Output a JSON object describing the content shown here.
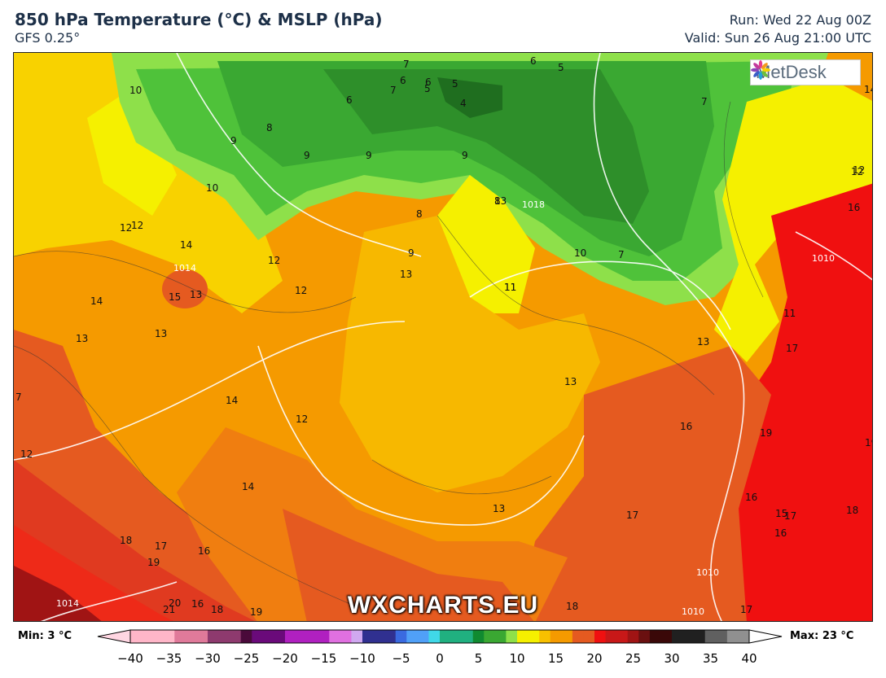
{
  "header": {
    "title": "850 hPa Temperature (°C) & MSLP (hPa)",
    "model": "GFS 0.25°",
    "run": "Run: Wed 22 Aug 00Z",
    "valid": "Valid: Sun 26 Aug 21:00 UTC"
  },
  "logo": {
    "text": "MetDesk",
    "icon": "metdesk-flower-icon"
  },
  "watermark": "WXCHARTS.EU",
  "colorbar": {
    "min_label": "Min: 3 °C",
    "max_label": "Max: 23 °C",
    "ticks": [
      "−40",
      "−35",
      "−30",
      "−25",
      "−20",
      "−15",
      "−10",
      "−5",
      "0",
      "5",
      "10",
      "15",
      "20",
      "25",
      "30",
      "35",
      "40"
    ],
    "range": [
      -40,
      40
    ]
  },
  "map_labels": {
    "temperature": [
      "7",
      "6",
      "6",
      "5",
      "6",
      "5",
      "4",
      "5",
      "10",
      "6",
      "7",
      "7",
      "8",
      "9",
      "9",
      "9",
      "9",
      "8",
      "7",
      "10",
      "14",
      "12",
      "8",
      "12",
      "13",
      "12",
      "10",
      "9",
      "13",
      "11",
      "14",
      "15",
      "12",
      "13",
      "11",
      "12",
      "14",
      "13",
      "13",
      "13",
      "14",
      "12",
      "16",
      "16",
      "17",
      "16",
      "15",
      "13",
      "17",
      "16",
      "16",
      "18",
      "17",
      "19",
      "16",
      "20",
      "21",
      "18",
      "19",
      "18",
      "17",
      "19",
      "18",
      "17",
      "16",
      "19",
      "14",
      "7",
      "12",
      "12",
      "13",
      "11"
    ],
    "isobars": [
      "1014",
      "1018",
      "1010",
      "1010",
      "1014",
      "1010"
    ]
  },
  "colors": {
    "c7": "#2e8f2a",
    "c8": "#3aa832",
    "c9": "#4fc23a",
    "c10": "#8ee04a",
    "c11": "#f5f000",
    "c12": "#f8d200",
    "c13": "#f7b800",
    "c14": "#f59a00",
    "c15": "#f07e10",
    "c16": "#e55a20",
    "c17": "#e03a20",
    "c18": "#ee2a18",
    "c19": "#f01010",
    "c20": "#c81818",
    "c21": "#a01414"
  }
}
